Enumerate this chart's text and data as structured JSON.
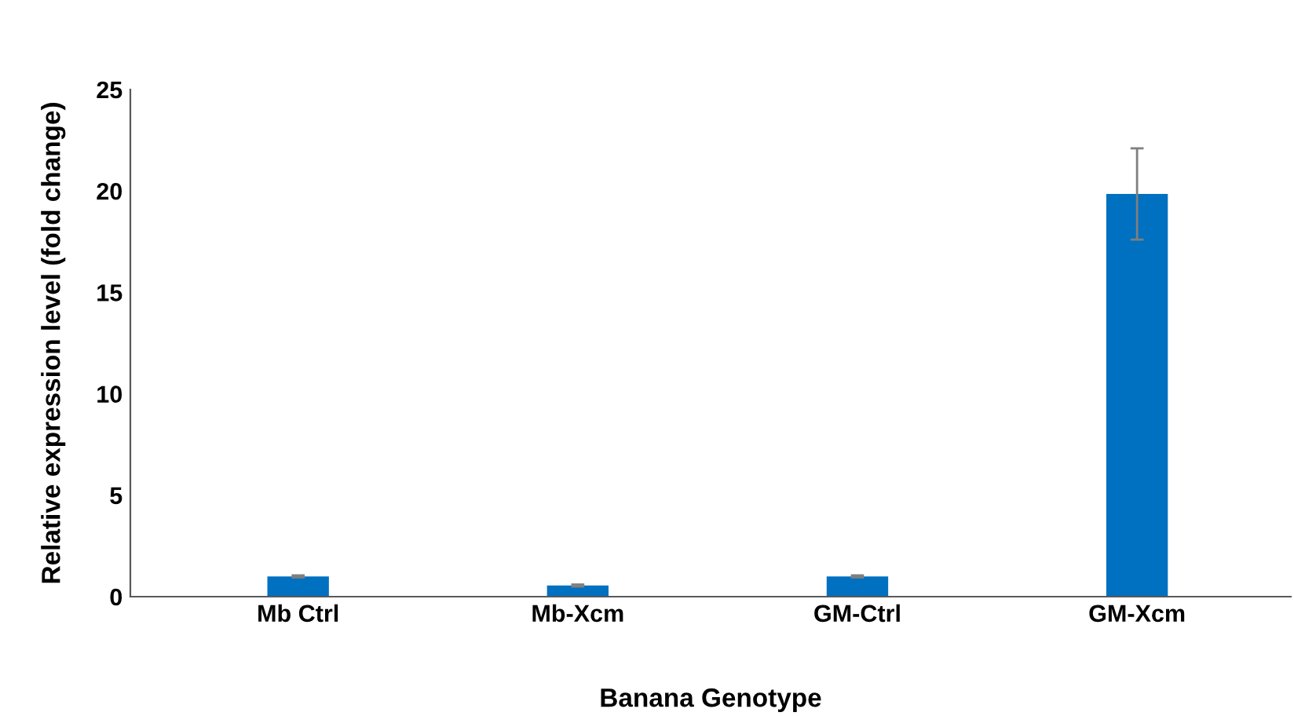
{
  "chart_data": {
    "type": "bar",
    "xlabel": "Banana Genotype",
    "ylabel": "Relative expression level (fold change)",
    "categories": [
      "Mb Ctrl",
      "Mb-Xcm",
      "GM-Ctrl",
      "GM-Xcm"
    ],
    "values": [
      1.0,
      0.55,
      1.0,
      19.85
    ],
    "errors": [
      0.05,
      0.05,
      0.05,
      2.25
    ],
    "color": "#0070c0",
    "ylim": [
      0,
      25
    ],
    "yticks": [
      0,
      5,
      10,
      15,
      20,
      25
    ],
    "grid": false
  }
}
